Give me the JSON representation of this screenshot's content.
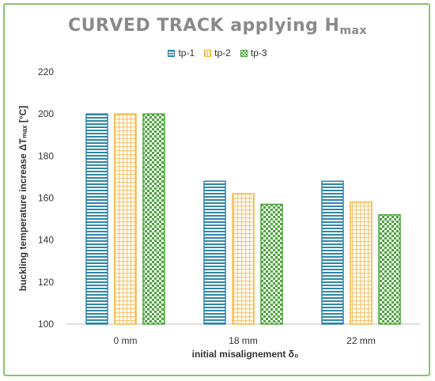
{
  "chart_data": {
    "type": "bar",
    "title": "CURVED TRACK applying H",
    "title_sub": "max",
    "xlabel": "initial misalignement δ₀",
    "ylabel": "buckling temperature increase  ΔTₘₐₓ [°C]",
    "categories": [
      "0 mm",
      "18 mm",
      "22 mm"
    ],
    "series": [
      {
        "name": "tp-1",
        "values": [
          200,
          168,
          168
        ],
        "color": "#2e86a8",
        "pattern": "horizontal-stripes"
      },
      {
        "name": "tp-2",
        "values": [
          200,
          162,
          158
        ],
        "color": "#f4b63f",
        "pattern": "fine-grid"
      },
      {
        "name": "tp-3",
        "values": [
          200,
          157,
          152
        ],
        "color": "#4aa53a",
        "pattern": "checker"
      }
    ],
    "ylim": [
      100,
      220
    ],
    "yticks": [
      "100",
      "120",
      "140",
      "160",
      "180",
      "200",
      "220"
    ],
    "legend_position": "top",
    "grid": false
  }
}
